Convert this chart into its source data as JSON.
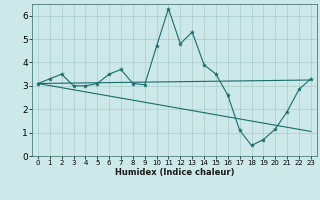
{
  "xlabel": "Humidex (Indice chaleur)",
  "bg_color": "#cce8e8",
  "line_color": "#1a6b6b",
  "grid_color": "#aacccc",
  "xlim": [
    -0.5,
    23.5
  ],
  "ylim": [
    0,
    6.5
  ],
  "xticks": [
    0,
    1,
    2,
    3,
    4,
    5,
    6,
    7,
    8,
    9,
    10,
    11,
    12,
    13,
    14,
    15,
    16,
    17,
    18,
    19,
    20,
    21,
    22,
    23
  ],
  "yticks": [
    0,
    1,
    2,
    3,
    4,
    5,
    6
  ],
  "series1_x": [
    0,
    1,
    2,
    3,
    4,
    5,
    6,
    7,
    8,
    9,
    10,
    11,
    12,
    13,
    14,
    15,
    16,
    17,
    18,
    19,
    20,
    21,
    22,
    23
  ],
  "series1_y": [
    3.1,
    3.3,
    3.5,
    3.0,
    3.0,
    3.1,
    3.5,
    3.7,
    3.1,
    3.05,
    4.7,
    6.3,
    4.8,
    5.3,
    3.9,
    3.5,
    2.6,
    1.1,
    0.45,
    0.7,
    1.15,
    1.9,
    2.85,
    3.3
  ],
  "series2_x": [
    0,
    23
  ],
  "series2_y": [
    3.1,
    3.25
  ],
  "series3_x": [
    0,
    23
  ],
  "series3_y": [
    3.1,
    1.05
  ]
}
